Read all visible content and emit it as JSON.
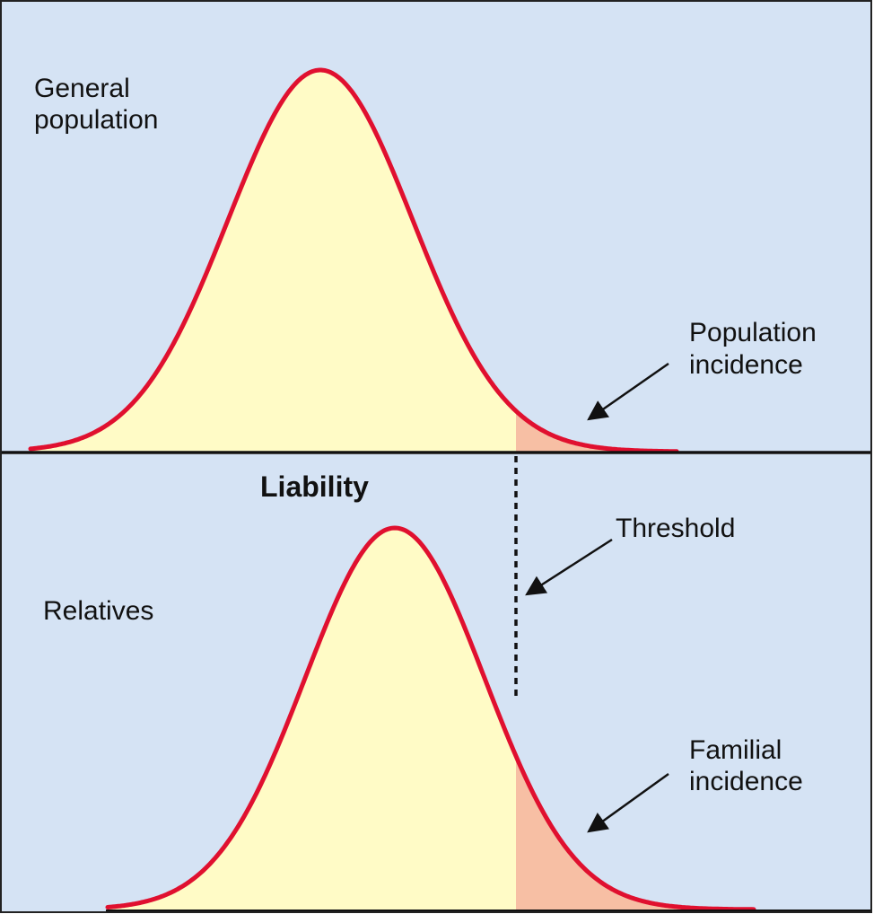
{
  "panels": {
    "top": {
      "label_line1": "General",
      "label_line2": "population",
      "annotation_line1": "Population",
      "annotation_line2": "incidence"
    },
    "bottom": {
      "label": "Relatives",
      "annotation_line1": "Familial",
      "annotation_line2": "incidence"
    }
  },
  "axis_label": "Liability",
  "threshold_label": "Threshold",
  "colors": {
    "background": "#d5e3f4",
    "curve_fill": "#fffbc6",
    "incidence_fill": "#f7bfa4",
    "curve_stroke": "#e0102f",
    "axis": "#111111",
    "border": "#222222"
  }
}
